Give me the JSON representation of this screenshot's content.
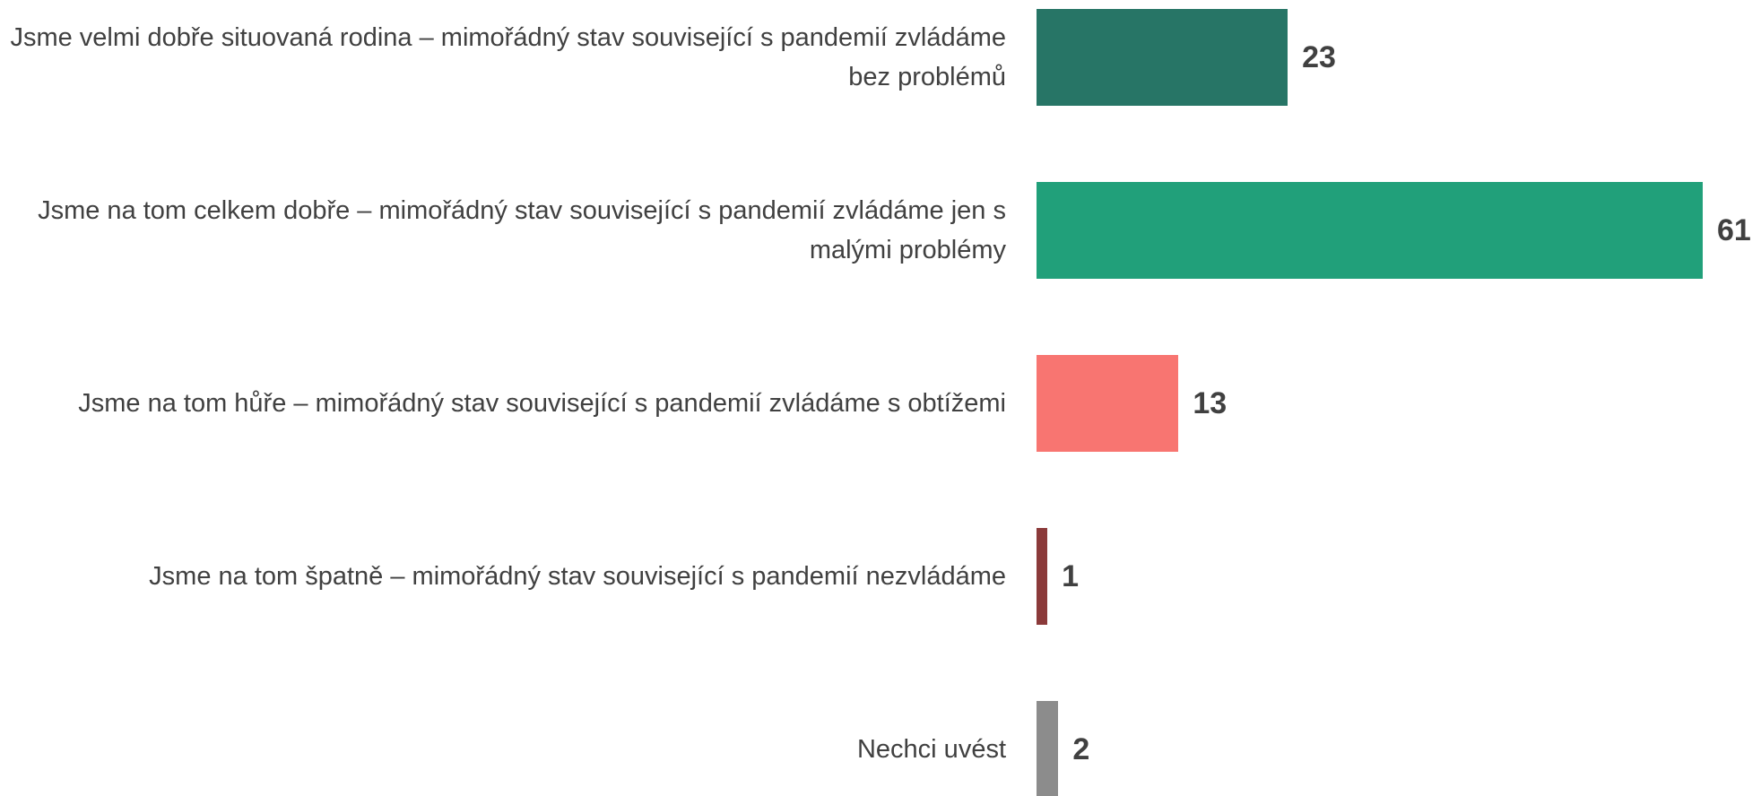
{
  "chart_data": {
    "type": "bar",
    "orientation": "horizontal",
    "categories": [
      "Jsme velmi dobře situovaná rodina – mimořádný stav související s pandemií zvládáme bez problémů",
      "Jsme na tom celkem dobře – mimořádný stav související s pandemií zvládáme jen s malými problémy",
      "Jsme na tom hůře – mimořádný stav související s pandemií zvládáme s obtížemi",
      "Jsme na tom špatně – mimořádný stav související s pandemií nezvládáme",
      "Nechci uvést"
    ],
    "values": [
      23,
      61,
      13,
      1,
      2
    ],
    "colors": [
      "#277566",
      "#21a07a",
      "#f87571",
      "#8b3a3a",
      "#8c8c8c"
    ]
  }
}
